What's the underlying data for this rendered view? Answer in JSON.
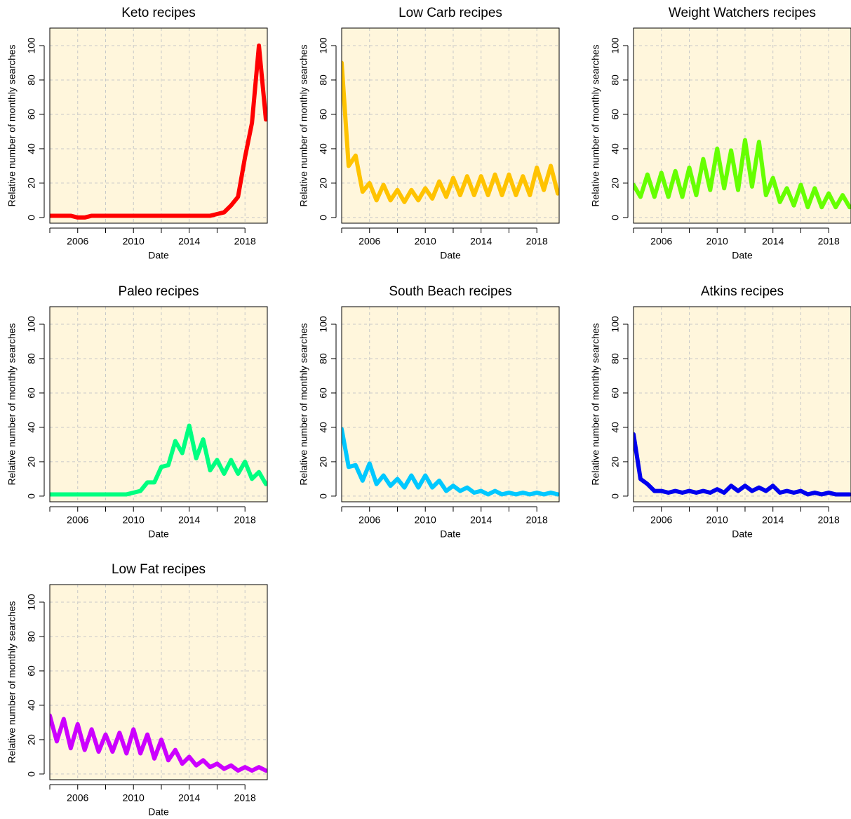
{
  "chart_data": [
    {
      "type": "line",
      "title": "Keto recipes",
      "xlabel": "Date",
      "ylabel": "Relative number of monthly searches",
      "xlim": [
        2004,
        2019.6
      ],
      "ylim": [
        -3.3,
        110.2
      ],
      "xticks": [
        {
          "value": 2004,
          "label": null
        },
        2006,
        {
          "value": 2008,
          "label": null
        },
        2010,
        {
          "value": 2012,
          "label": null
        },
        2014,
        {
          "value": 2016,
          "label": null
        },
        2018
      ],
      "yticks": [
        0,
        20,
        40,
        60,
        80,
        100
      ],
      "grid": true,
      "background": "#fff6dc",
      "series": [
        {
          "color": "#ff0000",
          "x": [
            2004,
            2004.5,
            2005,
            2005.5,
            2006,
            2006.5,
            2007,
            2007.5,
            2008,
            2008.5,
            2009,
            2009.5,
            2010,
            2010.5,
            2011,
            2011.5,
            2012,
            2012.5,
            2013,
            2013.5,
            2014,
            2014.5,
            2015,
            2015.5,
            2016,
            2016.5,
            2017,
            2017.5,
            2018,
            2018.5,
            2019,
            2019.5
          ],
          "values": [
            1,
            1,
            1,
            1,
            0,
            0,
            1,
            1,
            1,
            1,
            1,
            1,
            1,
            1,
            1,
            1,
            1,
            1,
            1,
            1,
            1,
            1,
            1,
            1,
            2,
            3,
            7,
            12,
            35,
            55,
            100,
            57
          ]
        }
      ]
    },
    {
      "type": "line",
      "title": "Low Carb recipes",
      "xlabel": "Date",
      "ylabel": "Relative number of monthly searches",
      "xlim": [
        2004,
        2019.6
      ],
      "ylim": [
        -3.3,
        110.2
      ],
      "xticks": [
        {
          "value": 2004,
          "label": null
        },
        2006,
        {
          "value": 2008,
          "label": null
        },
        2010,
        {
          "value": 2012,
          "label": null
        },
        2014,
        {
          "value": 2016,
          "label": null
        },
        2018
      ],
      "yticks": [
        0,
        20,
        40,
        60,
        80,
        100
      ],
      "grid": true,
      "background": "#fff6dc",
      "series": [
        {
          "color": "#ffc300",
          "x": [
            2004,
            2004.5,
            2005,
            2005.5,
            2006,
            2006.5,
            2007,
            2007.5,
            2008,
            2008.5,
            2009,
            2009.5,
            2010,
            2010.5,
            2011,
            2011.5,
            2012,
            2012.5,
            2013,
            2013.5,
            2014,
            2014.5,
            2015,
            2015.5,
            2016,
            2016.5,
            2017,
            2017.5,
            2018,
            2018.5,
            2019,
            2019.5
          ],
          "values": [
            90,
            30,
            36,
            15,
            20,
            10,
            19,
            10,
            16,
            9,
            16,
            10,
            17,
            11,
            21,
            12,
            23,
            13,
            24,
            13,
            24,
            13,
            25,
            13,
            25,
            13,
            24,
            13,
            29,
            16,
            30,
            14
          ]
        }
      ]
    },
    {
      "type": "line",
      "title": "Weight Watchers recipes",
      "xlabel": "Date",
      "ylabel": "Relative number of monthly searches",
      "xlim": [
        2004,
        2019.6
      ],
      "ylim": [
        -3.3,
        110.2
      ],
      "xticks": [
        {
          "value": 2004,
          "label": null
        },
        2006,
        {
          "value": 2008,
          "label": null
        },
        2010,
        {
          "value": 2012,
          "label": null
        },
        2014,
        {
          "value": 2016,
          "label": null
        },
        2018
      ],
      "yticks": [
        0,
        20,
        40,
        60,
        80,
        100
      ],
      "grid": true,
      "background": "#fff6dc",
      "series": [
        {
          "color": "#66ff00",
          "x": [
            2004,
            2004.5,
            2005,
            2005.5,
            2006,
            2006.5,
            2007,
            2007.5,
            2008,
            2008.5,
            2009,
            2009.5,
            2010,
            2010.5,
            2011,
            2011.5,
            2012,
            2012.5,
            2013,
            2013.5,
            2014,
            2014.5,
            2015,
            2015.5,
            2016,
            2016.5,
            2017,
            2017.5,
            2018,
            2018.5,
            2019,
            2019.5
          ],
          "values": [
            19,
            12,
            25,
            12,
            26,
            12,
            27,
            12,
            29,
            13,
            34,
            16,
            40,
            17,
            39,
            16,
            45,
            18,
            44,
            13,
            23,
            9,
            17,
            7,
            19,
            6,
            17,
            6,
            14,
            6,
            13,
            6
          ]
        }
      ]
    },
    {
      "type": "line",
      "title": "Paleo recipes",
      "xlabel": "Date",
      "ylabel": "Relative number of monthly searches",
      "xlim": [
        2004,
        2019.6
      ],
      "ylim": [
        -3.3,
        110.2
      ],
      "xticks": [
        {
          "value": 2004,
          "label": null
        },
        2006,
        {
          "value": 2008,
          "label": null
        },
        2010,
        {
          "value": 2012,
          "label": null
        },
        2014,
        {
          "value": 2016,
          "label": null
        },
        2018
      ],
      "yticks": [
        0,
        20,
        40,
        60,
        80,
        100
      ],
      "grid": true,
      "background": "#fff6dc",
      "series": [
        {
          "color": "#00ff80",
          "x": [
            2004,
            2004.5,
            2005,
            2005.5,
            2006,
            2006.5,
            2007,
            2007.5,
            2008,
            2008.5,
            2009,
            2009.5,
            2010,
            2010.5,
            2011,
            2011.5,
            2012,
            2012.5,
            2013,
            2013.5,
            2014,
            2014.5,
            2015,
            2015.5,
            2016,
            2016.5,
            2017,
            2017.5,
            2018,
            2018.5,
            2019,
            2019.5
          ],
          "values": [
            1,
            1,
            1,
            1,
            1,
            1,
            1,
            1,
            1,
            1,
            1,
            1,
            2,
            3,
            8,
            8,
            17,
            18,
            32,
            25,
            41,
            22,
            33,
            15,
            21,
            13,
            21,
            13,
            20,
            10,
            14,
            7
          ]
        }
      ]
    },
    {
      "type": "line",
      "title": "South Beach recipes",
      "xlabel": "Date",
      "ylabel": "Relative number of monthly searches",
      "xlim": [
        2004,
        2019.6
      ],
      "ylim": [
        -3.3,
        110.2
      ],
      "xticks": [
        {
          "value": 2004,
          "label": null
        },
        2006,
        {
          "value": 2008,
          "label": null
        },
        2010,
        {
          "value": 2012,
          "label": null
        },
        2014,
        {
          "value": 2016,
          "label": null
        },
        2018
      ],
      "yticks": [
        0,
        20,
        40,
        60,
        80,
        100
      ],
      "grid": true,
      "background": "#fff6dc",
      "series": [
        {
          "color": "#00c8ff",
          "x": [
            2004,
            2004.5,
            2005,
            2005.5,
            2006,
            2006.5,
            2007,
            2007.5,
            2008,
            2008.5,
            2009,
            2009.5,
            2010,
            2010.5,
            2011,
            2011.5,
            2012,
            2012.5,
            2013,
            2013.5,
            2014,
            2014.5,
            2015,
            2015.5,
            2016,
            2016.5,
            2017,
            2017.5,
            2018,
            2018.5,
            2019,
            2019.5
          ],
          "values": [
            39,
            17,
            18,
            9,
            19,
            7,
            12,
            6,
            10,
            5,
            12,
            5,
            12,
            5,
            9,
            3,
            6,
            3,
            5,
            2,
            3,
            1,
            3,
            1,
            2,
            1,
            2,
            1,
            2,
            1,
            2,
            1
          ]
        }
      ]
    },
    {
      "type": "line",
      "title": "Atkins recipes",
      "xlabel": "Date",
      "ylabel": "Relative number of monthly searches",
      "xlim": [
        2004,
        2019.6
      ],
      "ylim": [
        -3.3,
        110.2
      ],
      "xticks": [
        {
          "value": 2004,
          "label": null
        },
        2006,
        {
          "value": 2008,
          "label": null
        },
        2010,
        {
          "value": 2012,
          "label": null
        },
        2014,
        {
          "value": 2016,
          "label": null
        },
        2018
      ],
      "yticks": [
        0,
        20,
        40,
        60,
        80,
        100
      ],
      "grid": true,
      "background": "#fff6dc",
      "series": [
        {
          "color": "#0000ee",
          "x": [
            2004,
            2004.5,
            2005,
            2005.5,
            2006,
            2006.5,
            2007,
            2007.5,
            2008,
            2008.5,
            2009,
            2009.5,
            2010,
            2010.5,
            2011,
            2011.5,
            2012,
            2012.5,
            2013,
            2013.5,
            2014,
            2014.5,
            2015,
            2015.5,
            2016,
            2016.5,
            2017,
            2017.5,
            2018,
            2018.5,
            2019,
            2019.5
          ],
          "values": [
            36,
            10,
            7,
            3,
            3,
            2,
            3,
            2,
            3,
            2,
            3,
            2,
            4,
            2,
            6,
            3,
            6,
            3,
            5,
            3,
            6,
            2,
            3,
            2,
            3,
            1,
            2,
            1,
            2,
            1,
            1,
            1
          ]
        }
      ]
    },
    {
      "type": "line",
      "title": "Low Fat recipes",
      "xlabel": "Date",
      "ylabel": "Relative number of monthly searches",
      "xlim": [
        2004,
        2019.6
      ],
      "ylim": [
        -3.3,
        110.2
      ],
      "xticks": [
        {
          "value": 2004,
          "label": null
        },
        2006,
        {
          "value": 2008,
          "label": null
        },
        2010,
        {
          "value": 2012,
          "label": null
        },
        2014,
        {
          "value": 2016,
          "label": null
        },
        2018
      ],
      "yticks": [
        0,
        20,
        40,
        60,
        80,
        100
      ],
      "grid": true,
      "background": "#fff6dc",
      "series": [
        {
          "color": "#cc00ff",
          "x": [
            2004,
            2004.5,
            2005,
            2005.5,
            2006,
            2006.5,
            2007,
            2007.5,
            2008,
            2008.5,
            2009,
            2009.5,
            2010,
            2010.5,
            2011,
            2011.5,
            2012,
            2012.5,
            2013,
            2013.5,
            2014,
            2014.5,
            2015,
            2015.5,
            2016,
            2016.5,
            2017,
            2017.5,
            2018,
            2018.5,
            2019,
            2019.5
          ],
          "values": [
            34,
            19,
            32,
            15,
            29,
            14,
            26,
            13,
            23,
            13,
            24,
            12,
            26,
            12,
            23,
            9,
            20,
            8,
            14,
            6,
            10,
            5,
            8,
            4,
            6,
            3,
            5,
            2,
            4,
            2,
            4,
            2
          ]
        }
      ]
    }
  ]
}
